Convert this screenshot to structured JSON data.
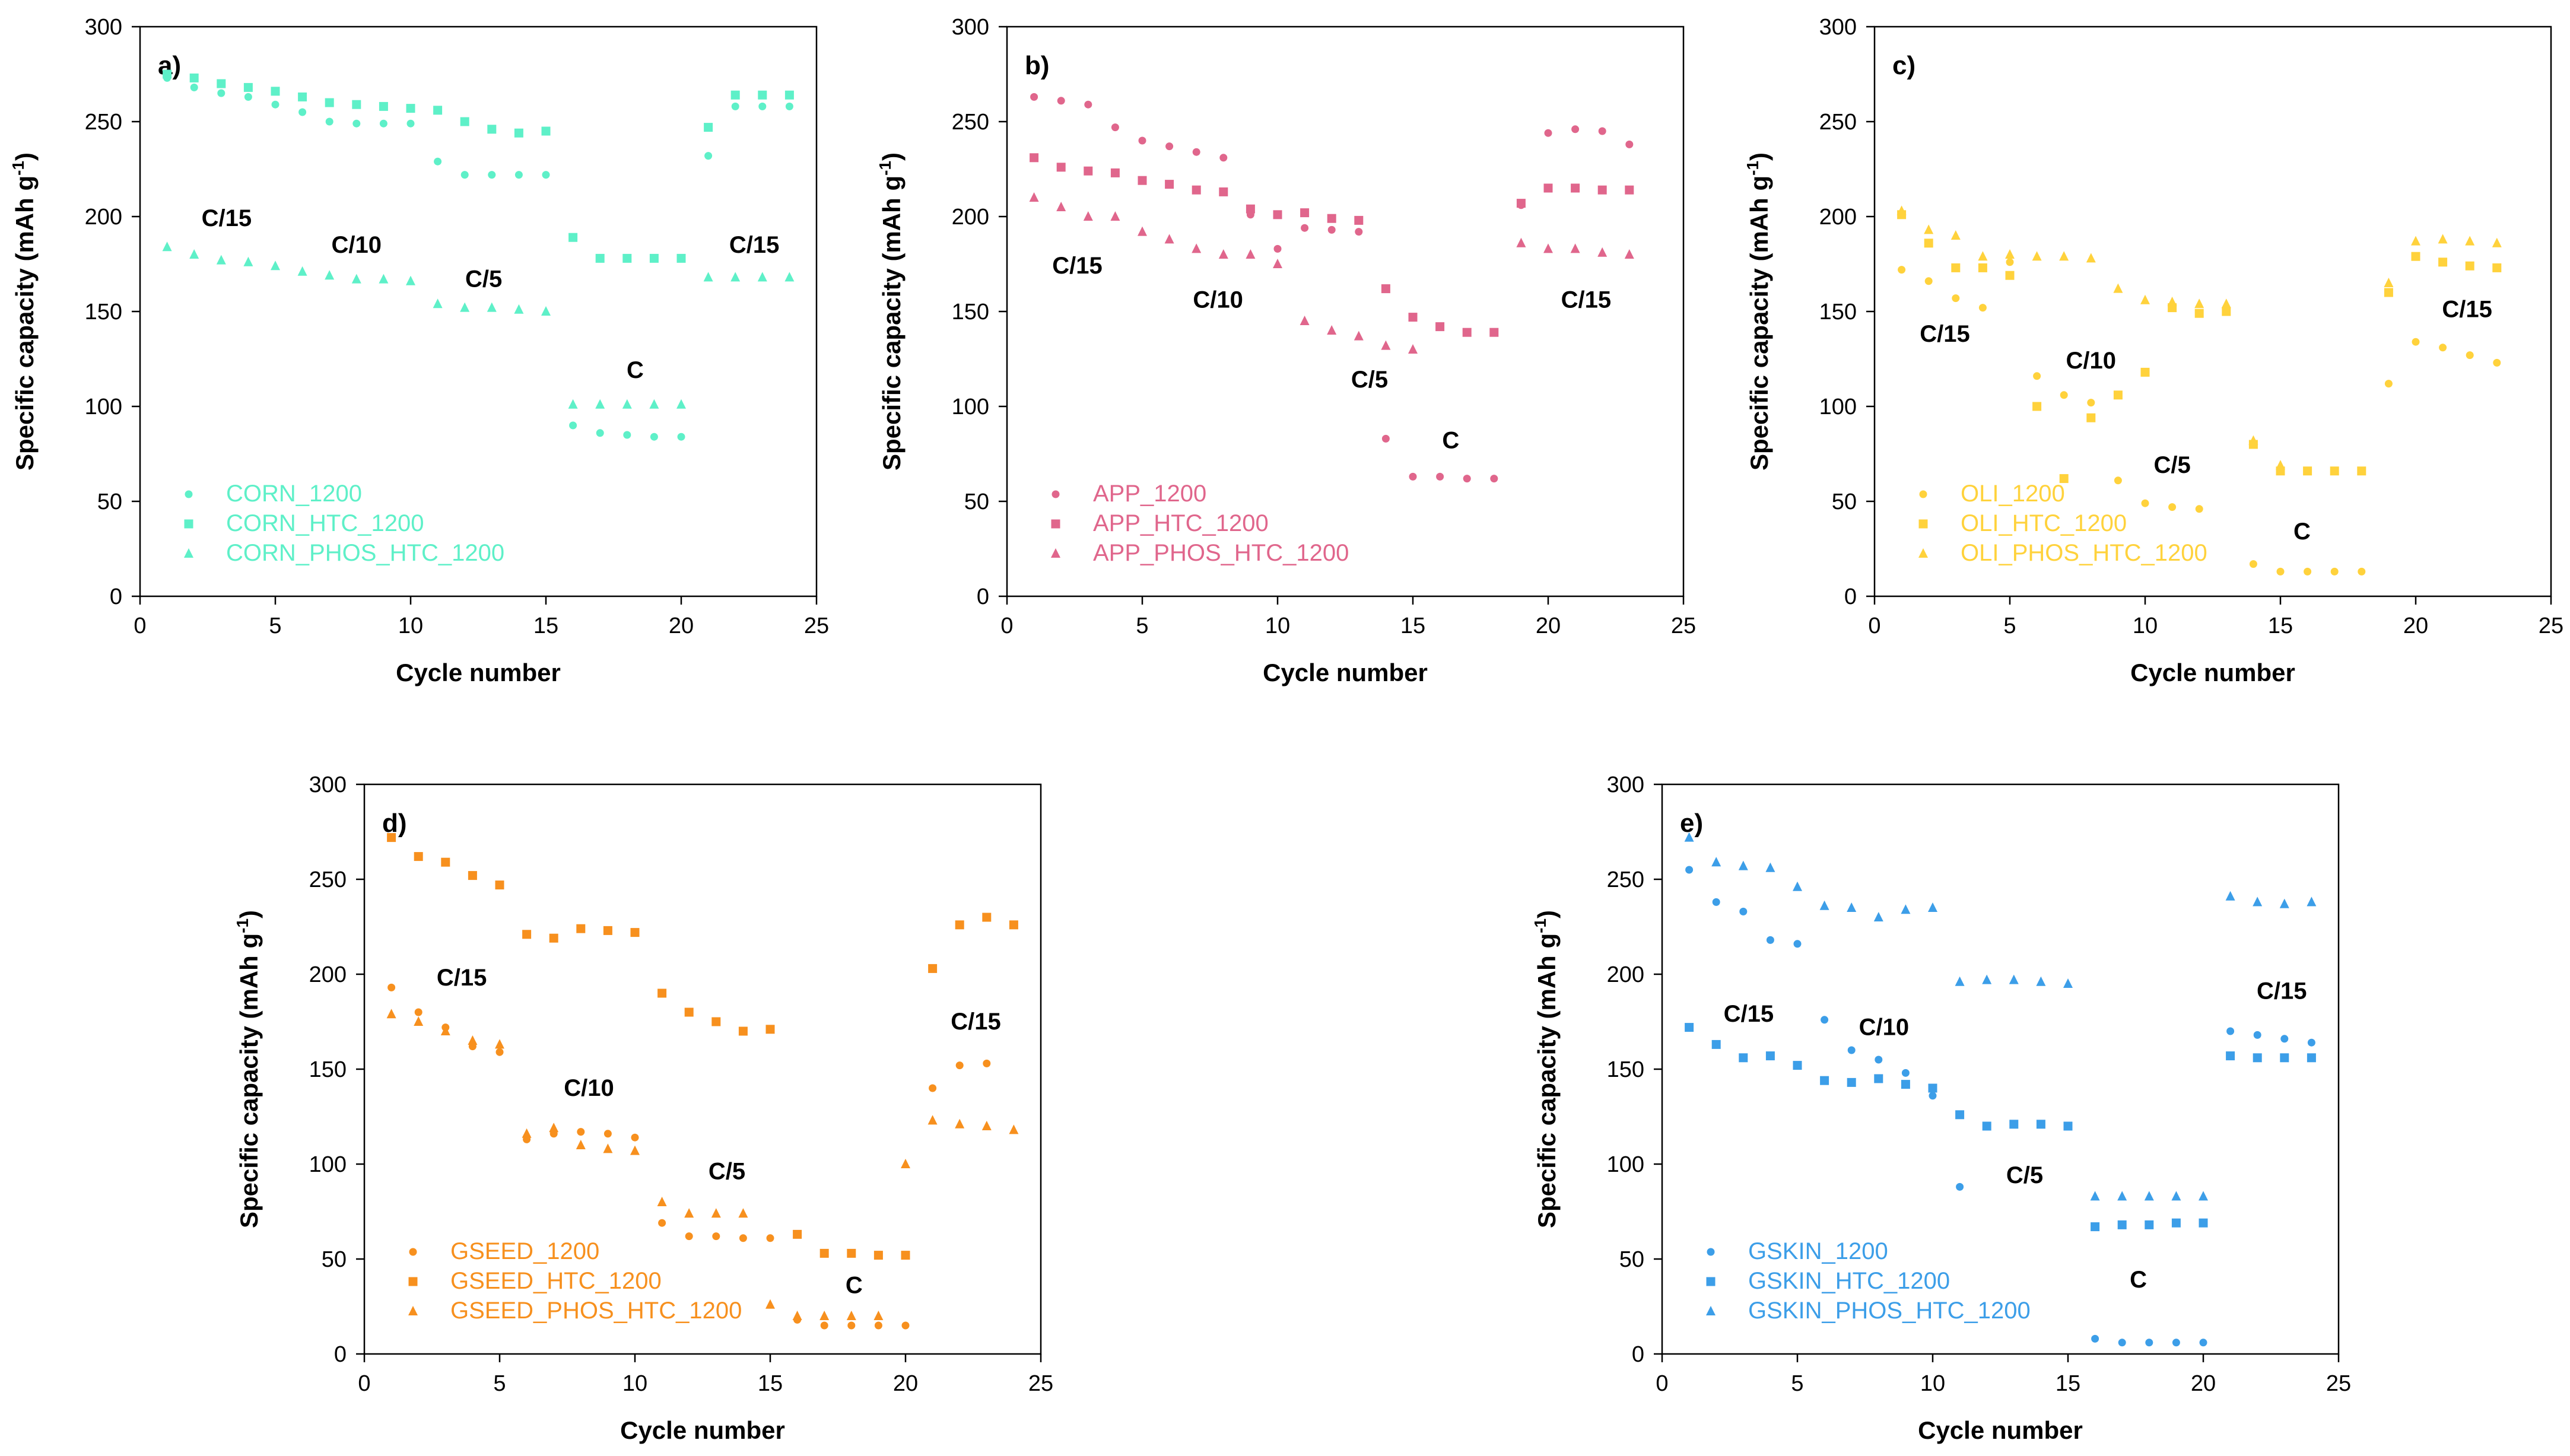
{
  "chart_data": [
    {
      "type": "scatter",
      "panel_label": "a)",
      "xlabel": "Cycle number",
      "ylabel": "Specific capacity (mAh g",
      "ylabel_sup": "-1",
      "ylabel_end": ")",
      "xlim": [
        0,
        25
      ],
      "ylim": [
        0,
        300
      ],
      "xticks": [
        0,
        5,
        10,
        15,
        20,
        25
      ],
      "yticks": [
        0,
        50,
        100,
        150,
        200,
        250,
        300
      ],
      "color": "#5ef0c8",
      "legend_position": "bottom-left",
      "series": [
        {
          "name": "CORN_1200",
          "marker": "circle",
          "x": [
            1,
            2,
            3,
            4,
            5,
            6,
            7,
            8,
            9,
            10,
            11,
            12,
            13,
            14,
            15,
            16,
            17,
            18,
            19,
            20,
            21,
            22,
            23,
            24
          ],
          "y": [
            273,
            268,
            265,
            263,
            259,
            255,
            250,
            249,
            249,
            249,
            229,
            222,
            222,
            222,
            222,
            90,
            86,
            85,
            84,
            84,
            232,
            258,
            258,
            258
          ]
        },
        {
          "name": "CORN_HTC_1200",
          "marker": "square",
          "x": [
            1,
            2,
            3,
            4,
            5,
            6,
            7,
            8,
            9,
            10,
            11,
            12,
            13,
            14,
            15,
            16,
            17,
            18,
            19,
            20,
            21,
            22,
            23,
            24
          ],
          "y": [
            275,
            273,
            270,
            268,
            266,
            263,
            260,
            259,
            258,
            257,
            256,
            250,
            246,
            244,
            245,
            189,
            178,
            178,
            178,
            178,
            247,
            264,
            264,
            264
          ]
        },
        {
          "name": "CORN_PHOS_HTC_1200",
          "marker": "triangle",
          "x": [
            1,
            2,
            3,
            4,
            5,
            6,
            7,
            8,
            9,
            10,
            11,
            12,
            13,
            14,
            15,
            16,
            17,
            18,
            19,
            20,
            21,
            22,
            23,
            24
          ],
          "y": [
            184,
            180,
            177,
            176,
            174,
            171,
            169,
            167,
            167,
            166,
            154,
            152,
            152,
            151,
            150,
            101,
            101,
            101,
            101,
            101,
            168,
            168,
            168,
            168
          ]
        }
      ],
      "annotations": [
        {
          "text": "C/15",
          "x": 3.2,
          "y": 195
        },
        {
          "text": "C/10",
          "x": 8,
          "y": 181
        },
        {
          "text": "C/5",
          "x": 12.7,
          "y": 163
        },
        {
          "text": "C",
          "x": 18.3,
          "y": 115
        },
        {
          "text": "C/15",
          "x": 22.7,
          "y": 181
        }
      ]
    },
    {
      "type": "scatter",
      "panel_label": "b)",
      "xlabel": "Cycle number",
      "ylabel": "Specific capacity (mAh g",
      "ylabel_sup": "-1",
      "ylabel_end": ")",
      "xlim": [
        0,
        25
      ],
      "ylim": [
        0,
        300
      ],
      "xticks": [
        0,
        5,
        10,
        15,
        20,
        25
      ],
      "yticks": [
        0,
        50,
        100,
        150,
        200,
        250,
        300
      ],
      "color": "#e0668c",
      "legend_position": "bottom-left",
      "series": [
        {
          "name": "APP_1200",
          "marker": "circle",
          "x": [
            1,
            2,
            3,
            4,
            5,
            6,
            7,
            8,
            9,
            10,
            11,
            12,
            13,
            14,
            15,
            16,
            17,
            18,
            19,
            20,
            21,
            22,
            23
          ],
          "y": [
            263,
            261,
            259,
            247,
            240,
            237,
            234,
            231,
            201,
            183,
            194,
            193,
            192,
            83,
            63,
            63,
            62,
            62,
            206,
            244,
            246,
            245,
            238
          ]
        },
        {
          "name": "APP_HTC_1200",
          "marker": "square",
          "x": [
            1,
            2,
            3,
            4,
            5,
            6,
            7,
            8,
            9,
            10,
            11,
            12,
            13,
            14,
            15,
            16,
            17,
            18,
            19,
            20,
            21,
            22,
            23
          ],
          "y": [
            231,
            226,
            224,
            223,
            219,
            217,
            214,
            213,
            204,
            201,
            202,
            199,
            198,
            162,
            147,
            142,
            139,
            139,
            207,
            215,
            215,
            214,
            214
          ]
        },
        {
          "name": "APP_PHOS_HTC_1200",
          "marker": "triangle",
          "x": [
            1,
            2,
            3,
            4,
            5,
            6,
            7,
            8,
            9,
            10,
            11,
            12,
            13,
            14,
            15,
            16,
            17,
            18,
            19,
            20,
            21,
            22,
            23
          ],
          "y": [
            210,
            205,
            200,
            200,
            192,
            188,
            183,
            180,
            180,
            175,
            145,
            140,
            137,
            132,
            130,
            null,
            null,
            null,
            186,
            183,
            183,
            181,
            180
          ]
        }
      ],
      "annotations": [
        {
          "text": "C/15",
          "x": 2.6,
          "y": 170
        },
        {
          "text": "C/10",
          "x": 7.8,
          "y": 152
        },
        {
          "text": "C/5",
          "x": 13.4,
          "y": 110
        },
        {
          "text": "C",
          "x": 16.4,
          "y": 78
        },
        {
          "text": "C/15",
          "x": 21.4,
          "y": 152
        }
      ]
    },
    {
      "type": "scatter",
      "panel_label": "c)",
      "xlabel": "Cycle number",
      "ylabel": "Specific capacity (mAh g",
      "ylabel_sup": "-1",
      "ylabel_end": ")",
      "xlim": [
        0,
        25
      ],
      "ylim": [
        0,
        300
      ],
      "xticks": [
        0,
        5,
        10,
        15,
        20,
        25
      ],
      "yticks": [
        0,
        50,
        100,
        150,
        200,
        250,
        300
      ],
      "color": "#ffd23c",
      "legend_position": "bottom-left",
      "series": [
        {
          "name": "OLI_1200",
          "marker": "circle",
          "x": [
            1,
            2,
            3,
            4,
            5,
            6,
            7,
            8,
            9,
            10,
            11,
            12,
            13,
            14,
            15,
            16,
            17,
            18,
            19,
            20,
            21,
            22,
            23
          ],
          "y": [
            172,
            166,
            157,
            152,
            176,
            116,
            106,
            102,
            61,
            49,
            47,
            46,
            null,
            17,
            13,
            13,
            13,
            13,
            112,
            134,
            131,
            127,
            123
          ]
        },
        {
          "name": "OLI_HTC_1200",
          "marker": "square",
          "x": [
            1,
            2,
            3,
            4,
            5,
            6,
            7,
            8,
            9,
            10,
            11,
            12,
            13,
            14,
            15,
            16,
            17,
            18,
            19,
            20,
            21,
            22,
            23
          ],
          "y": [
            201,
            186,
            173,
            173,
            169,
            100,
            62,
            94,
            106,
            118,
            152,
            149,
            150,
            80,
            66,
            66,
            66,
            66,
            160,
            179,
            176,
            174,
            173
          ]
        },
        {
          "name": "OLI_PHOS_HTC_1200",
          "marker": "triangle",
          "x": [
            1,
            2,
            3,
            4,
            5,
            6,
            7,
            8,
            9,
            10,
            11,
            12,
            13,
            14,
            15,
            16,
            17,
            18,
            19,
            20,
            21,
            22,
            23
          ],
          "y": [
            203,
            193,
            190,
            179,
            180,
            179,
            179,
            178,
            162,
            156,
            155,
            154,
            154,
            82,
            69,
            null,
            null,
            null,
            165,
            187,
            188,
            187,
            186
          ]
        }
      ],
      "annotations": [
        {
          "text": "C/15",
          "x": 2.6,
          "y": 134
        },
        {
          "text": "C/10",
          "x": 8,
          "y": 120
        },
        {
          "text": "C/5",
          "x": 11,
          "y": 65
        },
        {
          "text": "C",
          "x": 15.8,
          "y": 30
        },
        {
          "text": "C/15",
          "x": 21.9,
          "y": 147
        }
      ]
    },
    {
      "type": "scatter",
      "panel_label": "d)",
      "xlabel": "Cycle number",
      "ylabel": "Specific capacity (mAh g",
      "ylabel_sup": "-1",
      "ylabel_end": ")",
      "xlim": [
        0,
        25
      ],
      "ylim": [
        0,
        300
      ],
      "xticks": [
        0,
        5,
        10,
        15,
        20,
        25
      ],
      "yticks": [
        0,
        50,
        100,
        150,
        200,
        250,
        300
      ],
      "color": "#f7901e",
      "legend_position": "bottom-left",
      "series": [
        {
          "name": "GSEED_1200",
          "marker": "circle",
          "x": [
            1,
            2,
            3,
            4,
            5,
            6,
            7,
            8,
            9,
            10,
            11,
            12,
            13,
            14,
            15,
            16,
            17,
            18,
            19,
            20,
            21,
            22,
            23,
            24
          ],
          "y": [
            193,
            180,
            172,
            162,
            159,
            113,
            116,
            117,
            116,
            114,
            69,
            62,
            62,
            61,
            61,
            18,
            15,
            15,
            15,
            15,
            140,
            152,
            153,
            null
          ]
        },
        {
          "name": "GSEED_HTC_1200",
          "marker": "square",
          "x": [
            1,
            2,
            3,
            4,
            5,
            6,
            7,
            8,
            9,
            10,
            11,
            12,
            13,
            14,
            15,
            16,
            17,
            18,
            19,
            20,
            21,
            22,
            23,
            24
          ],
          "y": [
            272,
            262,
            259,
            252,
            247,
            221,
            219,
            224,
            223,
            222,
            190,
            180,
            175,
            170,
            171,
            63,
            53,
            53,
            52,
            52,
            203,
            226,
            230,
            226
          ]
        },
        {
          "name": "GSEED_PHOS_HTC_1200",
          "marker": "triangle",
          "x": [
            1,
            2,
            3,
            4,
            5,
            6,
            7,
            8,
            9,
            10,
            11,
            12,
            13,
            14,
            15,
            16,
            17,
            18,
            19,
            20,
            21,
            22,
            23,
            24
          ],
          "y": [
            179,
            175,
            170,
            165,
            163,
            116,
            119,
            110,
            108,
            107,
            80,
            74,
            74,
            74,
            26,
            20,
            20,
            20,
            20,
            100,
            123,
            121,
            120,
            118
          ]
        }
      ],
      "annotations": [
        {
          "text": "C/15",
          "x": 3.6,
          "y": 194
        },
        {
          "text": "C/10",
          "x": 8.3,
          "y": 136
        },
        {
          "text": "C/5",
          "x": 13.4,
          "y": 92
        },
        {
          "text": "C",
          "x": 18.1,
          "y": 32
        },
        {
          "text": "C/15",
          "x": 22.6,
          "y": 171
        }
      ]
    },
    {
      "type": "scatter",
      "panel_label": "e)",
      "xlabel": "Cycle number",
      "ylabel": "Specific capacity (mAh g",
      "ylabel_sup": "-1",
      "ylabel_end": ")",
      "xlim": [
        0,
        25
      ],
      "ylim": [
        0,
        300
      ],
      "xticks": [
        0,
        5,
        10,
        15,
        20,
        25
      ],
      "yticks": [
        0,
        50,
        100,
        150,
        200,
        250,
        300
      ],
      "color": "#3c9ee8",
      "legend_position": "bottom-left",
      "series": [
        {
          "name": "GSKIN_1200",
          "marker": "circle",
          "x": [
            1,
            2,
            3,
            4,
            5,
            6,
            7,
            8,
            9,
            10,
            11,
            12,
            13,
            14,
            15,
            16,
            17,
            18,
            19,
            20,
            21,
            22,
            23,
            24
          ],
          "y": [
            255,
            238,
            233,
            218,
            216,
            176,
            160,
            155,
            148,
            136,
            88,
            null,
            null,
            null,
            null,
            8,
            6,
            6,
            6,
            6,
            170,
            168,
            166,
            164
          ]
        },
        {
          "name": "GSKIN_HTC_1200",
          "marker": "square",
          "x": [
            1,
            2,
            3,
            4,
            5,
            6,
            7,
            8,
            9,
            10,
            11,
            12,
            13,
            14,
            15,
            16,
            17,
            18,
            19,
            20,
            21,
            22,
            23,
            24
          ],
          "y": [
            172,
            163,
            156,
            157,
            152,
            144,
            143,
            145,
            142,
            140,
            126,
            120,
            121,
            121,
            120,
            67,
            68,
            68,
            69,
            69,
            157,
            156,
            156,
            156
          ]
        },
        {
          "name": "GSKIN_PHOS_HTC_1200",
          "marker": "triangle",
          "x": [
            1,
            2,
            3,
            4,
            5,
            6,
            7,
            8,
            9,
            10,
            11,
            12,
            13,
            14,
            15,
            16,
            17,
            18,
            19,
            20,
            21,
            22,
            23,
            24
          ],
          "y": [
            272,
            259,
            257,
            256,
            246,
            236,
            235,
            230,
            234,
            235,
            196,
            197,
            197,
            196,
            195,
            83,
            83,
            83,
            83,
            83,
            241,
            238,
            237,
            238
          ]
        }
      ],
      "annotations": [
        {
          "text": "C/15",
          "x": 3.2,
          "y": 175
        },
        {
          "text": "C/10",
          "x": 8.2,
          "y": 168
        },
        {
          "text": "C/5",
          "x": 13.4,
          "y": 90
        },
        {
          "text": "C",
          "x": 17.6,
          "y": 35
        },
        {
          "text": "C/15",
          "x": 22.9,
          "y": 187
        }
      ]
    }
  ]
}
